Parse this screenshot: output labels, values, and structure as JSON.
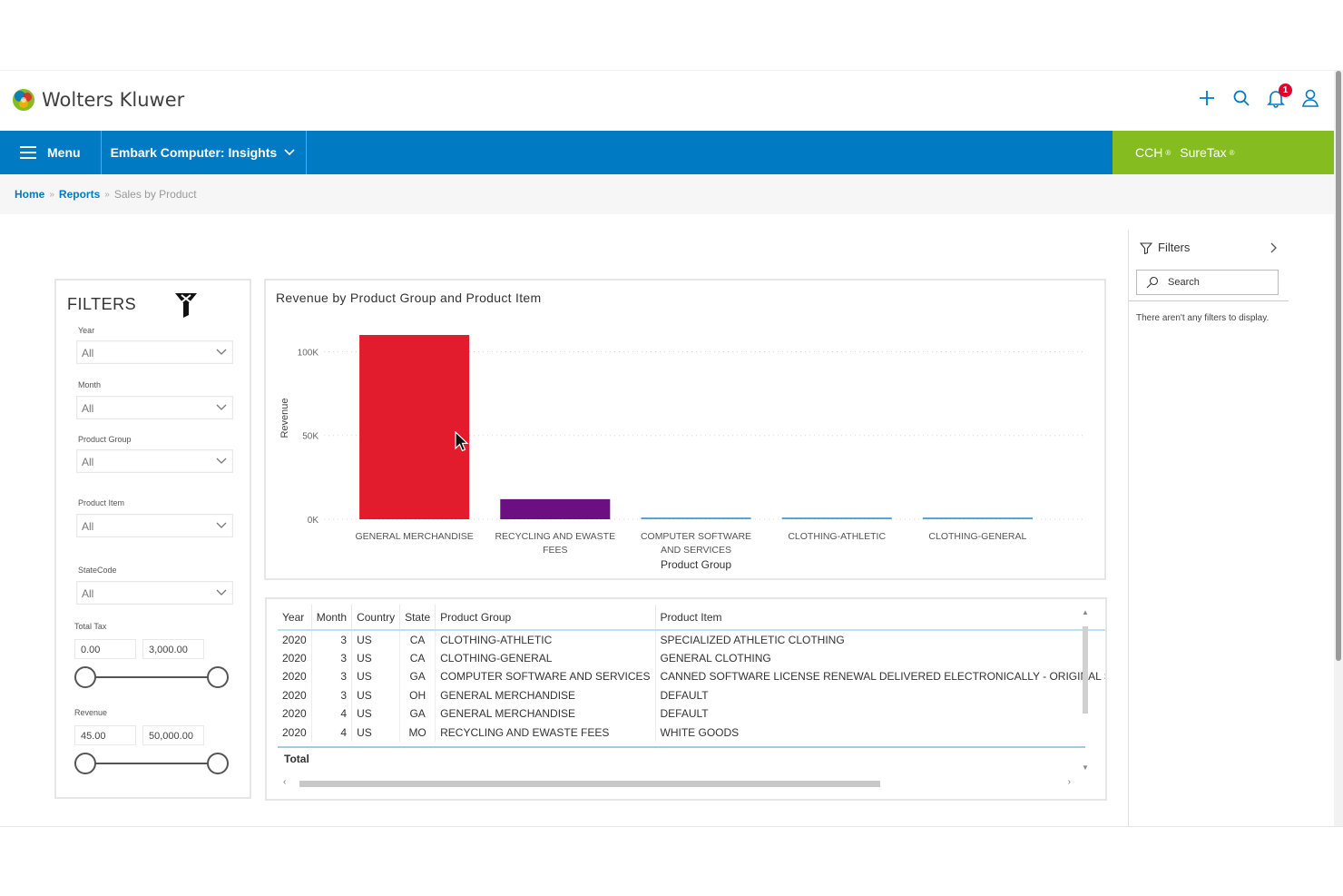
{
  "brand": {
    "name": "Wolters Kluwer"
  },
  "header_icons": [
    {
      "name": "plus-icon"
    },
    {
      "name": "search-icon"
    },
    {
      "name": "bell-icon",
      "badge": "1"
    },
    {
      "name": "user-icon"
    }
  ],
  "nav": {
    "menu_label": "Menu",
    "app_label": "Embark Computer: Insights",
    "product": {
      "cch": "CCH",
      "suretax": "SureTax",
      "reg": "®"
    }
  },
  "breadcrumb": {
    "home": "Home",
    "reports": "Reports",
    "current": "Sales by Product",
    "sep": "»"
  },
  "filters": {
    "title": "FILTERS",
    "year": {
      "label": "Year",
      "value": "All"
    },
    "month": {
      "label": "Month",
      "value": "All"
    },
    "product_group": {
      "label": "Product Group",
      "value": "All"
    },
    "product_item": {
      "label": "Product Item",
      "value": "All"
    },
    "state_code": {
      "label": "StateCode",
      "value": "All"
    },
    "total_tax": {
      "label": "Total Tax",
      "min": "0.00",
      "max": "3,000.00"
    },
    "revenue": {
      "label": "Revenue",
      "min": "45.00",
      "max": "50,000.00"
    }
  },
  "chart_data": {
    "type": "bar",
    "title": "Revenue by Product Group and Product Item",
    "xlabel": "Product Group",
    "ylabel": "Revenue",
    "categories": [
      "GENERAL MERCHANDISE",
      "RECYCLING AND EWASTE FEES",
      "COMPUTER SOFTWARE AND SERVICES",
      "CLOTHING-ATHLETIC",
      "CLOTHING-GENERAL"
    ],
    "category_lines": [
      [
        "GENERAL MERCHANDISE"
      ],
      [
        "RECYCLING AND EWASTE",
        "FEES"
      ],
      [
        "COMPUTER SOFTWARE",
        "AND SERVICES"
      ],
      [
        "CLOTHING-ATHLETIC"
      ],
      [
        "CLOTHING-GENERAL"
      ]
    ],
    "values": [
      110000,
      12000,
      1000,
      0,
      0
    ],
    "colors": [
      "#e31c2d",
      "#6b0f82",
      "#5ba3d0",
      "#5ba3d0",
      "#5ba3d0"
    ],
    "ylim": [
      0,
      110000
    ],
    "yticks": [
      {
        "value": 0,
        "label": "0K"
      },
      {
        "value": 50000,
        "label": "50K"
      },
      {
        "value": 100000,
        "label": "100K"
      }
    ],
    "grid": true
  },
  "table": {
    "columns": [
      "Year",
      "Month",
      "Country",
      "State",
      "Product Group",
      "Product Item"
    ],
    "rows": [
      [
        "2020",
        "3",
        "US",
        "CA",
        "CLOTHING-ATHLETIC",
        "SPECIALIZED ATHLETIC CLOTHING"
      ],
      [
        "2020",
        "3",
        "US",
        "CA",
        "CLOTHING-GENERAL",
        "GENERAL CLOTHING"
      ],
      [
        "2020",
        "3",
        "US",
        "GA",
        "COMPUTER SOFTWARE AND SERVICES",
        "CANNED SOFTWARE LICENSE RENEWAL DELIVERED ELECTRONICALLY - ORIGINAL SALE"
      ],
      [
        "2020",
        "3",
        "US",
        "OH",
        "GENERAL MERCHANDISE",
        "DEFAULT"
      ],
      [
        "2020",
        "4",
        "US",
        "GA",
        "GENERAL MERCHANDISE",
        "DEFAULT"
      ],
      [
        "2020",
        "4",
        "US",
        "MO",
        "RECYCLING AND EWASTE FEES",
        "WHITE GOODS"
      ]
    ],
    "total_label": "Total"
  },
  "side_pane": {
    "title": "Filters",
    "search_placeholder": "Search",
    "empty_message": "There aren't any filters to display."
  }
}
